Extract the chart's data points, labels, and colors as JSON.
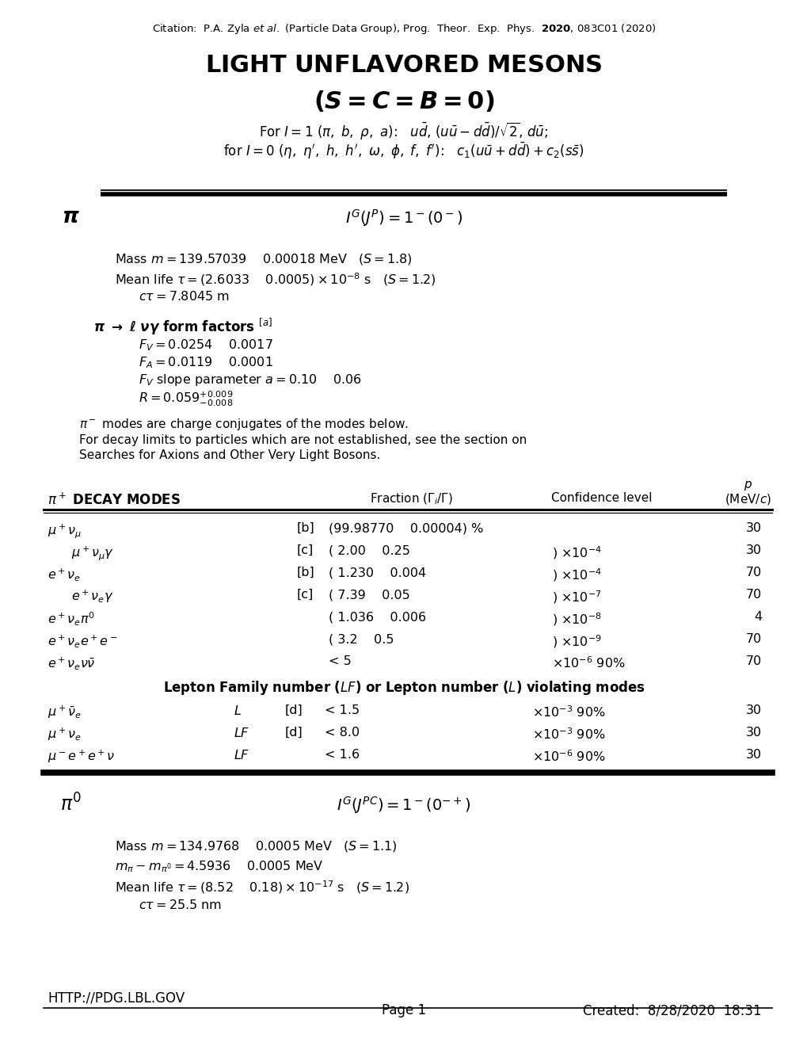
{
  "citation": "Citation:  P.A. Zyla et al. (Particle Data Group), Prog.  Theor.  Exp.  Phys.  2020, 083C01 (2020)",
  "bg_color": "#ffffff",
  "text_color": "#000000",
  "decay_modes": [
    {
      "mode": "$\\mu^+\\nu_\\mu$",
      "indent": 60,
      "ref": "[b]",
      "frac": "(99.98770    0.00004) %",
      "exp": "",
      "p": "30"
    },
    {
      "mode": "$\\mu^+\\nu_\\mu\\gamma$",
      "indent": 90,
      "ref": "[c]",
      "frac": "( 2.00    0.25",
      "exp": ") $\\times 10^{-4}$",
      "p": "30"
    },
    {
      "mode": "$e^+\\nu_e$",
      "indent": 60,
      "ref": "[b]",
      "frac": "( 1.230    0.004",
      "exp": ") $\\times 10^{-4}$",
      "p": "70"
    },
    {
      "mode": "$e^+\\nu_e\\gamma$",
      "indent": 90,
      "ref": "[c]",
      "frac": "( 7.39    0.05",
      "exp": ") $\\times 10^{-7}$",
      "p": "70"
    },
    {
      "mode": "$e^+\\nu_e\\pi^0$",
      "indent": 60,
      "ref": "",
      "frac": "( 1.036    0.006",
      "exp": ") $\\times 10^{-8}$",
      "p": "4"
    },
    {
      "mode": "$e^+\\nu_e e^+e^-$",
      "indent": 60,
      "ref": "",
      "frac": "( 3.2    0.5",
      "exp": ") $\\times 10^{-9}$",
      "p": "70"
    },
    {
      "mode": "$e^+\\nu_e\\nu\\bar{\\nu}$",
      "indent": 60,
      "ref": "",
      "frac": "< 5",
      "exp": "$\\times 10^{-6}$ 90%",
      "p": "70"
    }
  ],
  "lf_modes": [
    {
      "mode": "$\\mu^+\\bar{\\nu}_e$",
      "sym": "$L$",
      "ref": "[d]",
      "frac": "< 1.5",
      "exp": "$\\times 10^{-3}$ 90%",
      "p": "30"
    },
    {
      "mode": "$\\mu^+\\nu_e$",
      "sym": "$LF$",
      "ref": "[d]",
      "frac": "< 8.0",
      "exp": "$\\times 10^{-3}$ 90%",
      "p": "30"
    },
    {
      "mode": "$\\mu^-e^+e^+\\nu$",
      "sym": "$LF$",
      "ref": "",
      "frac": "< 1.6",
      "exp": "$\\times 10^{-6}$ 90%",
      "p": "30"
    }
  ]
}
